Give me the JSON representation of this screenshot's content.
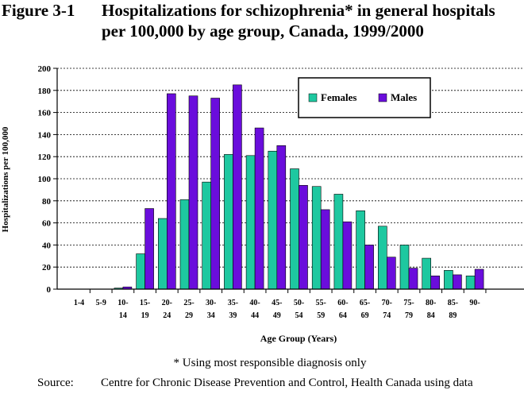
{
  "figure": {
    "number": "Figure 3-1",
    "title_line1": "Hospitalizations for schizophrenia* in general hospitals",
    "title_line2": "per 100,000 by age group, Canada, 1999/2000",
    "footnote": "* Using most responsible diagnosis only",
    "source_label": "Source:",
    "source_text": "Centre for Chronic Disease Prevention and Control, Health Canada using data"
  },
  "colors": {
    "females": "#1ec8a0",
    "males": "#6a0ddc"
  },
  "chart_data": {
    "type": "bar",
    "xlabel": "Age Group (Years)",
    "ylabel": "Hospitalizations per 100,000",
    "ylim": [
      0,
      200
    ],
    "yticks": [
      0,
      20,
      40,
      60,
      80,
      100,
      120,
      140,
      160,
      180,
      200
    ],
    "grid": "dashed horizontal",
    "legend_position": "top-right",
    "categories": [
      [
        "1-4",
        ""
      ],
      [
        "5-9",
        ""
      ],
      [
        "10-",
        "14"
      ],
      [
        "15-",
        "19"
      ],
      [
        "20-",
        "24"
      ],
      [
        "25-",
        "29"
      ],
      [
        "30-",
        "34"
      ],
      [
        "35-",
        "39"
      ],
      [
        "40-",
        "44"
      ],
      [
        "45-",
        "49"
      ],
      [
        "50-",
        "54"
      ],
      [
        "55-",
        "59"
      ],
      [
        "60-",
        "64"
      ],
      [
        "65-",
        "69"
      ],
      [
        "70-",
        "74"
      ],
      [
        "75-",
        "79"
      ],
      [
        "80-",
        "84"
      ],
      [
        "85-",
        "89"
      ],
      [
        "90-",
        ""
      ]
    ],
    "series": [
      {
        "name": "Females",
        "values": [
          0,
          0,
          1,
          32,
          64,
          81,
          97,
          122,
          121,
          125,
          109,
          93,
          86,
          71,
          57,
          40,
          28,
          17,
          12
        ]
      },
      {
        "name": "Males",
        "values": [
          0,
          0,
          2,
          73,
          177,
          175,
          173,
          185,
          146,
          130,
          94,
          72,
          61,
          40,
          29,
          19,
          12,
          13,
          18
        ]
      }
    ]
  }
}
